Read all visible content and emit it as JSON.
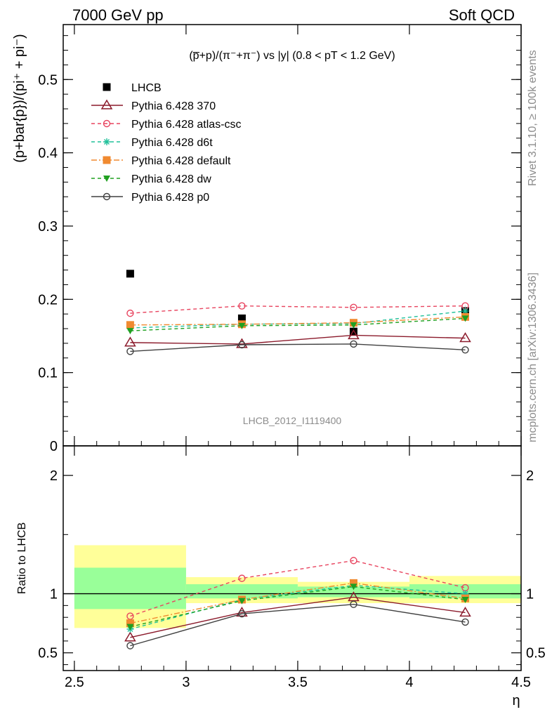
{
  "header": {
    "left_title": "7000 GeV pp",
    "right_title": "Soft QCD"
  },
  "side_labels": {
    "rivet": "Rivet 3.1.10, ≥ 100k events",
    "mcplots": "mcplots.cern.ch [arXiv:1306.3436]"
  },
  "chart_data": [
    {
      "type": "scatter",
      "title": "(p̅+p)/(π⁻+π⁻) vs |y| (0.8 < pT < 1.2 GeV)",
      "ylabel": "(p+bar{p})/(pi⁺ + pi⁻)",
      "watermark": "LHCB_2012_I1119400",
      "x": [
        2.75,
        3.25,
        3.75,
        4.25
      ],
      "xlim": [
        2.45,
        4.5
      ],
      "ylim": [
        0,
        0.575
      ],
      "yticks": [
        0,
        0.1,
        0.2,
        0.3,
        0.4,
        0.5
      ],
      "ytick_labels": [
        "0",
        "0.1",
        "0.2",
        "0.3",
        "0.4",
        "0.5"
      ],
      "legend_position": "top-left",
      "series": [
        {
          "name": "LHCB",
          "values": [
            0.235,
            0.174,
            0.156,
            0.184
          ],
          "color": "#000000",
          "marker": "filled-square",
          "line": "none"
        },
        {
          "name": "Pythia 6.428 370",
          "values": [
            0.141,
            0.139,
            0.151,
            0.147
          ],
          "color": "#8b1a2b",
          "marker": "open-triangle",
          "line": "solid"
        },
        {
          "name": "Pythia 6.428 atlas-csc",
          "values": [
            0.181,
            0.191,
            0.189,
            0.191
          ],
          "color": "#e8445f",
          "marker": "open-circle",
          "line": "dashed"
        },
        {
          "name": "Pythia 6.428 d6t",
          "values": [
            0.161,
            0.166,
            0.167,
            0.184
          ],
          "color": "#20c09a",
          "marker": "star",
          "line": "dashed"
        },
        {
          "name": "Pythia 6.428 default",
          "values": [
            0.165,
            0.166,
            0.168,
            0.176
          ],
          "color": "#f08a30",
          "marker": "filled-square",
          "line": "dashdot"
        },
        {
          "name": "Pythia 6.428 dw",
          "values": [
            0.157,
            0.164,
            0.165,
            0.174
          ],
          "color": "#20a020",
          "marker": "filled-triangle-down",
          "line": "dashed"
        },
        {
          "name": "Pythia 6.428 p0",
          "values": [
            0.129,
            0.138,
            0.139,
            0.131
          ],
          "color": "#404040",
          "marker": "open-circle",
          "line": "solid"
        }
      ]
    },
    {
      "type": "line",
      "ylabel": "Ratio to LHCB",
      "xlabel": "η",
      "x": [
        2.75,
        3.25,
        3.75,
        4.25
      ],
      "xlim": [
        2.45,
        4.5
      ],
      "ylim": [
        0.35,
        2.25
      ],
      "yticks": [
        0.5,
        1,
        2
      ],
      "ytick_labels": [
        "0.5",
        "1",
        "2"
      ],
      "xticks": [
        2.5,
        3,
        3.5,
        4,
        4.5
      ],
      "xtick_labels": [
        "2.5",
        "3",
        "3.5",
        "4",
        "4.5"
      ],
      "bands": [
        {
          "x_from": 2.5,
          "x_to": 3.0,
          "yellow": [
            0.71,
            1.41
          ],
          "green": [
            0.87,
            1.22
          ]
        },
        {
          "x_from": 3.0,
          "x_to": 3.5,
          "yellow": [
            0.92,
            1.14
          ],
          "green": [
            0.96,
            1.08
          ]
        },
        {
          "x_from": 3.5,
          "x_to": 4.0,
          "yellow": [
            0.92,
            1.1
          ],
          "green": [
            0.97,
            1.06
          ]
        },
        {
          "x_from": 4.0,
          "x_to": 4.5,
          "yellow": [
            0.92,
            1.15
          ],
          "green": [
            0.96,
            1.08
          ]
        }
      ],
      "series": [
        {
          "name": "Pythia 6.428 370",
          "values": [
            0.63,
            0.84,
            0.97,
            0.84
          ],
          "color": "#8b1a2b",
          "marker": "open-triangle",
          "line": "solid"
        },
        {
          "name": "Pythia 6.428 atlas-csc",
          "values": [
            0.81,
            1.13,
            1.28,
            1.05
          ],
          "color": "#e8445f",
          "marker": "open-circle",
          "line": "dashed"
        },
        {
          "name": "Pythia 6.428 d6t",
          "values": [
            0.7,
            0.95,
            1.07,
            1.0
          ],
          "color": "#20c09a",
          "marker": "star",
          "line": "dashed"
        },
        {
          "name": "Pythia 6.428 default",
          "values": [
            0.75,
            0.95,
            1.09,
            0.96
          ],
          "color": "#f08a30",
          "marker": "filled-square",
          "line": "dashdot"
        },
        {
          "name": "Pythia 6.428 dw",
          "values": [
            0.72,
            0.94,
            1.06,
            0.95
          ],
          "color": "#20a020",
          "marker": "filled-triangle-down",
          "line": "dashed"
        },
        {
          "name": "Pythia 6.428 p0",
          "values": [
            0.56,
            0.83,
            0.91,
            0.76
          ],
          "color": "#404040",
          "marker": "open-circle",
          "line": "solid"
        }
      ]
    }
  ]
}
